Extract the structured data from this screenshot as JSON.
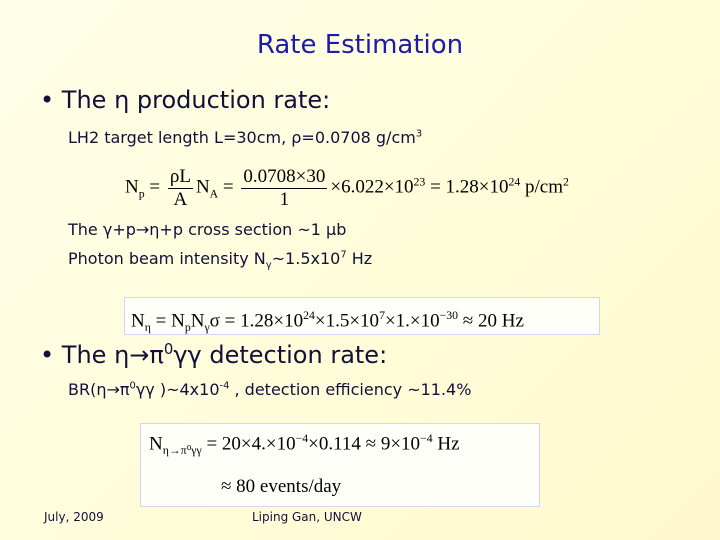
{
  "title": "Rate Estimation",
  "bullet1": {
    "heading": "The η production rate:",
    "line1": [
      {
        "t": "LH2 target length L=30cm, ρ=0.0708 g/cm",
        "sup": "3"
      }
    ],
    "equation1": [
      {
        "t": "N",
        "sub": "p"
      },
      " = ",
      {
        "num": "ρL",
        "den": "A"
      },
      {
        "t": "N",
        "sub": "A"
      },
      " = ",
      {
        "num": "0.0708×30",
        "den": "1"
      },
      {
        "t": "×6.022×10",
        "sup": "23"
      },
      " = ",
      {
        "t": "1.28×10",
        "sup": "24"
      },
      {
        "t": "  p/cm",
        "sup": "2"
      }
    ],
    "line2": [
      "The γ+p→η+p cross section ~1 μb"
    ],
    "line3": [
      {
        "t": "Photon beam intensity N",
        "sub": "γ"
      },
      {
        "t": "~1.5x10",
        "sup": "7"
      },
      " Hz"
    ],
    "equation2": [
      {
        "t": "N",
        "sub": "η"
      },
      " = ",
      {
        "t": "N",
        "sub": "p"
      },
      {
        "t": "N",
        "sub": "γ"
      },
      {
        "t": "σ = 1.28×10",
        "sup": "24"
      },
      {
        "t": "×1.5×10",
        "sup": "7"
      },
      {
        "t": "×1.×10",
        "sup": "−30"
      },
      "  ≈ 20 Hz"
    ]
  },
  "bullet2": {
    "heading": [
      {
        "t": "The η→π",
        "sup": "0"
      },
      "γγ detection rate:"
    ],
    "line1": [
      {
        "t": "BR(η→π",
        "sup": "0"
      },
      {
        "t": "γγ )~4x10",
        "sup": "-4"
      },
      " , detection efficiency ~11.4%"
    ],
    "equation3": {
      "row1": [
        {
          "t": "N",
          "sub": "η→π⁰γγ"
        },
        {
          "t": "  = 20×4.×10",
          "sup": "−4"
        },
        {
          "t": "×0.114 ≈ 9×10",
          "sup": "−4"
        },
        "  Hz"
      ],
      "row2": [
        "≈ 80 events/day"
      ]
    }
  },
  "footer": {
    "date": "July, 2009",
    "author": "Liping Gan, UNCW"
  }
}
